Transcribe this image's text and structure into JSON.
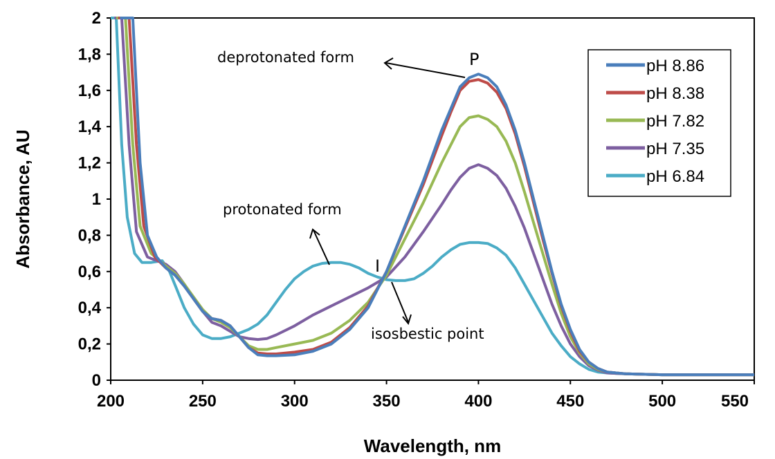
{
  "chart_data": {
    "type": "line",
    "xlabel": "Wavelength, nm",
    "ylabel": "Absorbance, AU",
    "xlim": [
      200,
      550
    ],
    "ylim": [
      0,
      2
    ],
    "x_ticks": [
      200,
      250,
      300,
      350,
      400,
      450,
      500,
      550
    ],
    "y_ticks": [
      "0",
      "0,2",
      "0,4",
      "0,6",
      "0,8",
      "1",
      "1,2",
      "1,4",
      "1,6",
      "1,8",
      "2"
    ],
    "grid": false,
    "legend_position": "top-right",
    "series": [
      {
        "name": "pH 8.86",
        "color": "#4a7ebb",
        "points": [
          [
            205,
            2.0
          ],
          [
            212,
            2.0
          ],
          [
            216,
            1.2
          ],
          [
            220,
            0.8
          ],
          [
            225,
            0.68
          ],
          [
            230,
            0.62
          ],
          [
            235,
            0.58
          ],
          [
            240,
            0.52
          ],
          [
            245,
            0.45
          ],
          [
            250,
            0.38
          ],
          [
            255,
            0.34
          ],
          [
            260,
            0.33
          ],
          [
            265,
            0.3
          ],
          [
            270,
            0.24
          ],
          [
            275,
            0.18
          ],
          [
            280,
            0.14
          ],
          [
            285,
            0.135
          ],
          [
            290,
            0.135
          ],
          [
            300,
            0.14
          ],
          [
            310,
            0.16
          ],
          [
            320,
            0.2
          ],
          [
            330,
            0.28
          ],
          [
            340,
            0.4
          ],
          [
            350,
            0.6
          ],
          [
            360,
            0.85
          ],
          [
            370,
            1.1
          ],
          [
            380,
            1.38
          ],
          [
            385,
            1.5
          ],
          [
            390,
            1.62
          ],
          [
            395,
            1.67
          ],
          [
            400,
            1.69
          ],
          [
            405,
            1.67
          ],
          [
            410,
            1.62
          ],
          [
            415,
            1.52
          ],
          [
            420,
            1.38
          ],
          [
            425,
            1.2
          ],
          [
            430,
            1.0
          ],
          [
            435,
            0.8
          ],
          [
            440,
            0.6
          ],
          [
            445,
            0.42
          ],
          [
            450,
            0.28
          ],
          [
            455,
            0.17
          ],
          [
            460,
            0.1
          ],
          [
            465,
            0.065
          ],
          [
            470,
            0.045
          ],
          [
            480,
            0.035
          ],
          [
            500,
            0.03
          ],
          [
            550,
            0.03
          ]
        ]
      },
      {
        "name": "pH 8.38",
        "color": "#be4b48",
        "points": [
          [
            204,
            2.0
          ],
          [
            210,
            2.0
          ],
          [
            214,
            1.3
          ],
          [
            218,
            0.85
          ],
          [
            224,
            0.68
          ],
          [
            230,
            0.62
          ],
          [
            235,
            0.58
          ],
          [
            240,
            0.52
          ],
          [
            245,
            0.45
          ],
          [
            250,
            0.38
          ],
          [
            255,
            0.34
          ],
          [
            260,
            0.33
          ],
          [
            265,
            0.3
          ],
          [
            270,
            0.24
          ],
          [
            275,
            0.18
          ],
          [
            280,
            0.15
          ],
          [
            285,
            0.145
          ],
          [
            290,
            0.145
          ],
          [
            300,
            0.155
          ],
          [
            310,
            0.17
          ],
          [
            320,
            0.21
          ],
          [
            330,
            0.29
          ],
          [
            340,
            0.41
          ],
          [
            350,
            0.6
          ],
          [
            360,
            0.84
          ],
          [
            370,
            1.08
          ],
          [
            380,
            1.35
          ],
          [
            385,
            1.48
          ],
          [
            390,
            1.6
          ],
          [
            395,
            1.65
          ],
          [
            400,
            1.66
          ],
          [
            405,
            1.64
          ],
          [
            410,
            1.59
          ],
          [
            415,
            1.5
          ],
          [
            420,
            1.36
          ],
          [
            425,
            1.18
          ],
          [
            430,
            0.98
          ],
          [
            435,
            0.78
          ],
          [
            440,
            0.59
          ],
          [
            445,
            0.41
          ],
          [
            450,
            0.27
          ],
          [
            455,
            0.16
          ],
          [
            460,
            0.1
          ],
          [
            465,
            0.065
          ],
          [
            470,
            0.045
          ],
          [
            480,
            0.035
          ],
          [
            500,
            0.03
          ],
          [
            550,
            0.03
          ]
        ]
      },
      {
        "name": "pH 7.82",
        "color": "#98b954",
        "points": [
          [
            203,
            2.0
          ],
          [
            208,
            2.0
          ],
          [
            212,
            1.3
          ],
          [
            216,
            0.85
          ],
          [
            222,
            0.7
          ],
          [
            230,
            0.63
          ],
          [
            235,
            0.59
          ],
          [
            240,
            0.53
          ],
          [
            245,
            0.46
          ],
          [
            250,
            0.39
          ],
          [
            255,
            0.34
          ],
          [
            260,
            0.32
          ],
          [
            265,
            0.29
          ],
          [
            270,
            0.24
          ],
          [
            275,
            0.19
          ],
          [
            280,
            0.17
          ],
          [
            285,
            0.17
          ],
          [
            290,
            0.18
          ],
          [
            300,
            0.2
          ],
          [
            310,
            0.22
          ],
          [
            320,
            0.26
          ],
          [
            330,
            0.33
          ],
          [
            340,
            0.43
          ],
          [
            350,
            0.58
          ],
          [
            360,
            0.78
          ],
          [
            370,
            0.98
          ],
          [
            380,
            1.2
          ],
          [
            385,
            1.3
          ],
          [
            390,
            1.4
          ],
          [
            395,
            1.45
          ],
          [
            400,
            1.46
          ],
          [
            405,
            1.44
          ],
          [
            410,
            1.4
          ],
          [
            415,
            1.32
          ],
          [
            420,
            1.2
          ],
          [
            425,
            1.04
          ],
          [
            430,
            0.87
          ],
          [
            435,
            0.7
          ],
          [
            440,
            0.53
          ],
          [
            445,
            0.37
          ],
          [
            450,
            0.24
          ],
          [
            455,
            0.15
          ],
          [
            460,
            0.09
          ],
          [
            465,
            0.06
          ],
          [
            470,
            0.045
          ],
          [
            480,
            0.035
          ],
          [
            500,
            0.03
          ],
          [
            550,
            0.03
          ]
        ]
      },
      {
        "name": "pH 7.35",
        "color": "#7d5fa0",
        "points": [
          [
            202,
            2.0
          ],
          [
            206,
            2.0
          ],
          [
            210,
            1.3
          ],
          [
            214,
            0.82
          ],
          [
            220,
            0.68
          ],
          [
            230,
            0.64
          ],
          [
            235,
            0.6
          ],
          [
            240,
            0.53
          ],
          [
            245,
            0.45
          ],
          [
            250,
            0.38
          ],
          [
            255,
            0.32
          ],
          [
            260,
            0.3
          ],
          [
            265,
            0.27
          ],
          [
            270,
            0.24
          ],
          [
            275,
            0.23
          ],
          [
            280,
            0.225
          ],
          [
            285,
            0.23
          ],
          [
            290,
            0.25
          ],
          [
            300,
            0.3
          ],
          [
            310,
            0.36
          ],
          [
            320,
            0.41
          ],
          [
            330,
            0.46
          ],
          [
            340,
            0.51
          ],
          [
            350,
            0.57
          ],
          [
            360,
            0.68
          ],
          [
            370,
            0.82
          ],
          [
            380,
            0.97
          ],
          [
            385,
            1.05
          ],
          [
            390,
            1.12
          ],
          [
            395,
            1.17
          ],
          [
            400,
            1.19
          ],
          [
            405,
            1.17
          ],
          [
            410,
            1.13
          ],
          [
            415,
            1.06
          ],
          [
            420,
            0.96
          ],
          [
            425,
            0.84
          ],
          [
            430,
            0.7
          ],
          [
            435,
            0.56
          ],
          [
            440,
            0.42
          ],
          [
            445,
            0.3
          ],
          [
            450,
            0.2
          ],
          [
            455,
            0.13
          ],
          [
            460,
            0.08
          ],
          [
            465,
            0.055
          ],
          [
            470,
            0.04
          ],
          [
            480,
            0.035
          ],
          [
            500,
            0.03
          ],
          [
            550,
            0.03
          ]
        ]
      },
      {
        "name": "pH 6.84",
        "color": "#4bacc6",
        "points": [
          [
            200,
            2.0
          ],
          [
            203,
            2.0
          ],
          [
            206,
            1.3
          ],
          [
            209,
            0.9
          ],
          [
            213,
            0.7
          ],
          [
            217,
            0.65
          ],
          [
            222,
            0.65
          ],
          [
            228,
            0.66
          ],
          [
            232,
            0.6
          ],
          [
            236,
            0.5
          ],
          [
            240,
            0.4
          ],
          [
            245,
            0.31
          ],
          [
            250,
            0.25
          ],
          [
            255,
            0.23
          ],
          [
            260,
            0.23
          ],
          [
            265,
            0.24
          ],
          [
            270,
            0.26
          ],
          [
            275,
            0.28
          ],
          [
            280,
            0.31
          ],
          [
            285,
            0.36
          ],
          [
            290,
            0.43
          ],
          [
            295,
            0.5
          ],
          [
            300,
            0.56
          ],
          [
            305,
            0.6
          ],
          [
            310,
            0.63
          ],
          [
            315,
            0.645
          ],
          [
            320,
            0.65
          ],
          [
            325,
            0.65
          ],
          [
            330,
            0.64
          ],
          [
            335,
            0.62
          ],
          [
            340,
            0.59
          ],
          [
            345,
            0.57
          ],
          [
            350,
            0.555
          ],
          [
            355,
            0.55
          ],
          [
            360,
            0.55
          ],
          [
            365,
            0.56
          ],
          [
            370,
            0.59
          ],
          [
            375,
            0.63
          ],
          [
            380,
            0.68
          ],
          [
            385,
            0.72
          ],
          [
            390,
            0.75
          ],
          [
            395,
            0.76
          ],
          [
            400,
            0.76
          ],
          [
            405,
            0.755
          ],
          [
            410,
            0.73
          ],
          [
            415,
            0.69
          ],
          [
            420,
            0.62
          ],
          [
            425,
            0.53
          ],
          [
            430,
            0.44
          ],
          [
            435,
            0.35
          ],
          [
            440,
            0.26
          ],
          [
            445,
            0.19
          ],
          [
            450,
            0.13
          ],
          [
            455,
            0.09
          ],
          [
            460,
            0.06
          ],
          [
            465,
            0.045
          ],
          [
            470,
            0.04
          ],
          [
            480,
            0.035
          ],
          [
            500,
            0.03
          ],
          [
            550,
            0.03
          ]
        ]
      }
    ],
    "annotations": {
      "deprotonated": "deprotonated form",
      "protonated": "protonated form",
      "isosbestic": "isosbestic point",
      "peak_label": "P",
      "isosbestic_label": "I"
    }
  }
}
